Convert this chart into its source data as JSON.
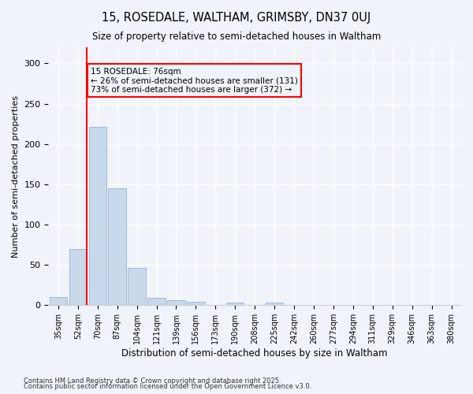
{
  "title": "15, ROSEDALE, WALTHAM, GRIMSBY, DN37 0UJ",
  "subtitle": "Size of property relative to semi-detached houses in Waltham",
  "xlabel": "Distribution of semi-detached houses by size in Waltham",
  "ylabel": "Number of semi-detached properties",
  "bar_color": "#c9d9ec",
  "bar_edge_color": "#a0b8d8",
  "background_color": "#f0f4fa",
  "grid_color": "#ffffff",
  "categories": [
    "35sqm",
    "52sqm",
    "70sqm",
    "87sqm",
    "104sqm",
    "121sqm",
    "139sqm",
    "156sqm",
    "173sqm",
    "190sqm",
    "208sqm",
    "225sqm",
    "242sqm",
    "260sqm",
    "277sqm",
    "294sqm",
    "311sqm",
    "329sqm",
    "346sqm",
    "363sqm",
    "380sqm"
  ],
  "values": [
    10,
    70,
    221,
    145,
    46,
    9,
    6,
    4,
    0,
    3,
    0,
    3,
    0,
    0,
    0,
    0,
    0,
    0,
    0,
    0,
    0
  ],
  "ylim": [
    0,
    320
  ],
  "yticks": [
    0,
    50,
    100,
    150,
    200,
    250,
    300
  ],
  "property_line_x": 1,
  "property_label": "15 ROSEDALE: 76sqm",
  "pct_smaller": "26% of semi-detached houses are smaller (131)",
  "pct_larger": "73% of semi-detached houses are larger (372)",
  "annotation_box_color": "#ff0000",
  "vline_color": "#ff0000",
  "footnote1": "Contains HM Land Registry data © Crown copyright and database right 2025.",
  "footnote2": "Contains public sector information licensed under the Open Government Licence v3.0."
}
